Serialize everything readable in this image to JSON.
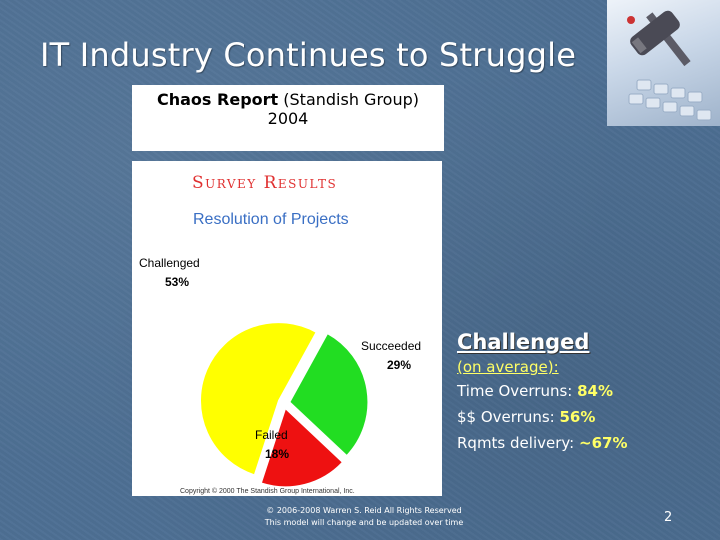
{
  "slide": {
    "title": "IT Industry Continues to Struggle",
    "page_number": "2"
  },
  "source": {
    "report_name": "Chaos Report",
    "publisher": "(Standish Group)",
    "year": "2004"
  },
  "chart_panel": {
    "header": "Survey Results",
    "subtitle": "Resolution of Projects",
    "copyright": "Copyright © 2000 The Standish Group International, Inc."
  },
  "chart_data": {
    "type": "pie",
    "title": "Resolution of Projects",
    "slices": [
      {
        "label": "Challenged",
        "value": 53,
        "display": "53%",
        "color": "#ffff00"
      },
      {
        "label": "Succeeded",
        "value": 29,
        "display": "29%",
        "color": "#22dd22"
      },
      {
        "label": "Failed",
        "value": 18,
        "display": "18%",
        "color": "#ee1111"
      }
    ]
  },
  "notes": {
    "heading": "Challenged",
    "subheading": "(on average):",
    "rows": [
      {
        "label": "Time Overruns: ",
        "value": "84%"
      },
      {
        "label": "$$ Overruns: ",
        "value": "56%"
      },
      {
        "label": "Rqmts delivery: ",
        "value": "~67%"
      }
    ]
  },
  "footer": {
    "line1": "© 2006-2008 Warren S. Reid All Rights Reserved",
    "line2": "This model will change and be updated over time"
  },
  "colors": {
    "background": "#4d6f93",
    "header_red": "#e03030",
    "subtitle_blue": "#3a6fc4",
    "highlight_yellow": "#ffff66"
  },
  "icons": {
    "decoration": "gavel-keyboard-photo"
  }
}
